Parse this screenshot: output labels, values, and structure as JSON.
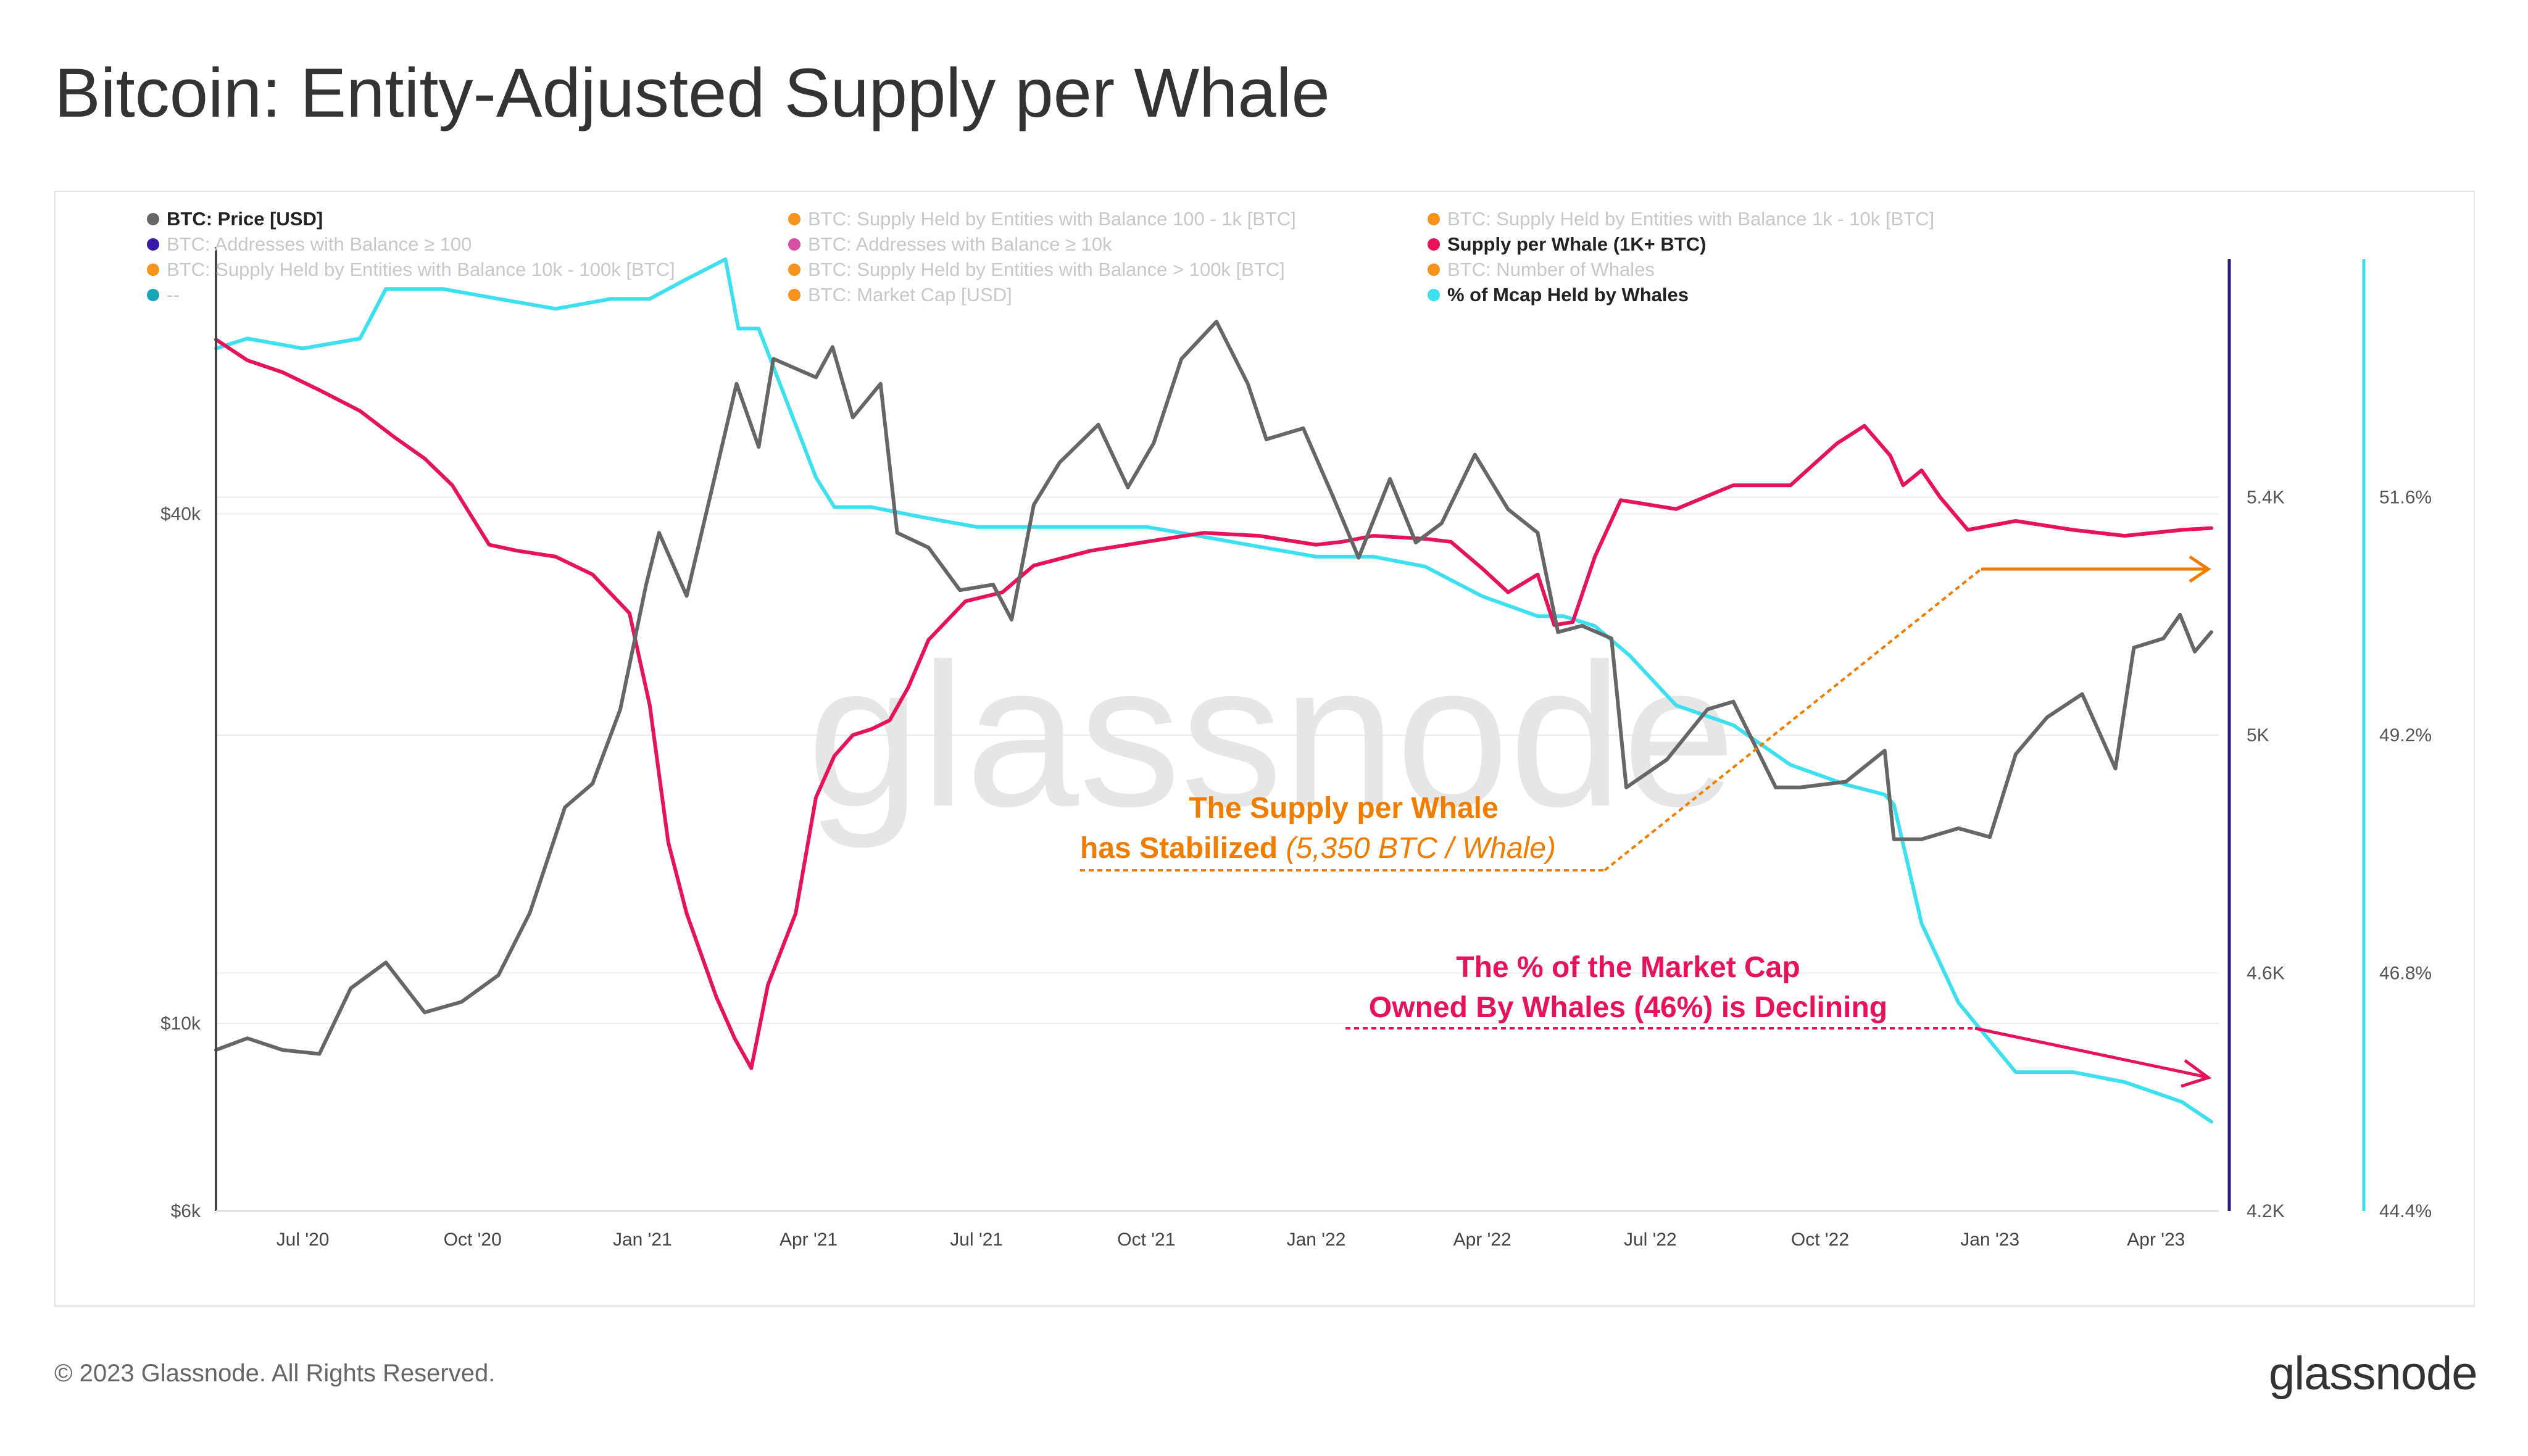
{
  "title": "Bitcoin: Entity-Adjusted Supply per Whale",
  "footer": {
    "copyright": "© 2023 Glassnode. All Rights Reserved.",
    "logo": "glassnode"
  },
  "watermark": "glassnode",
  "chart_data": {
    "type": "line",
    "title": "Bitcoin: Entity-Adjusted Supply per Whale",
    "legend": [
      {
        "label": "BTC: Price [USD]",
        "color": "#666666",
        "active": true
      },
      {
        "label": "BTC: Supply Held by Entities with Balance 100 - 1k [BTC]",
        "color": "#f7931a",
        "active": false
      },
      {
        "label": "BTC: Supply Held by Entities with Balance 1k - 10k [BTC]",
        "color": "#f7931a",
        "active": false
      },
      {
        "label": "BTC: Addresses with Balance ≥ 100",
        "color": "#3a1aa8",
        "active": false
      },
      {
        "label": "BTC: Addresses with Balance ≥ 10k",
        "color": "#d94fa3",
        "active": false
      },
      {
        "label": "Supply per Whale (1K+ BTC)",
        "color": "#e8125c",
        "active": true
      },
      {
        "label": "BTC: Supply Held by Entities with Balance 10k - 100k [BTC]",
        "color": "#f7931a",
        "active": false
      },
      {
        "label": "BTC: Supply Held by Entities with Balance > 100k [BTC]",
        "color": "#f7931a",
        "active": false
      },
      {
        "label": "BTC: Number of Whales",
        "color": "#f7931a",
        "active": false
      },
      {
        "label": "--",
        "color": "#1aa6b7",
        "active": false
      },
      {
        "label": "BTC: Market Cap [USD]",
        "color": "#f7931a",
        "active": false
      },
      {
        "label": "% of Mcap Held by Whales",
        "color": "#3de0ee",
        "active": true
      }
    ],
    "x_ticks": [
      "Jul '20",
      "Oct '20",
      "Jan '21",
      "Apr '21",
      "Jul '21",
      "Oct '21",
      "Jan '22",
      "Apr '22",
      "Jul '22",
      "Oct '22",
      "Jan '23",
      "Apr '23"
    ],
    "y_left": {
      "scale": "log",
      "ticks": [
        "$6k",
        "$10k",
        "$40k"
      ],
      "tick_values": [
        6000,
        10000,
        40000
      ],
      "range": [
        6000,
        80000
      ]
    },
    "y_right1": {
      "ticks": [
        "4.2K",
        "4.6K",
        "5K",
        "5.4K"
      ],
      "tick_values": [
        4200,
        4600,
        5000,
        5400
      ],
      "range": [
        4200,
        5800
      ],
      "color": "#2d1a80"
    },
    "y_right2": {
      "ticks": [
        "44.4%",
        "46.8%",
        "49.2%",
        "51.6%"
      ],
      "tick_values": [
        44.4,
        46.8,
        49.2,
        51.6
      ],
      "range": [
        44.4,
        54.0
      ],
      "color": "#3de0ee"
    },
    "series": [
      {
        "name": "BTC: Price [USD]",
        "axis": "y_left",
        "color": "#666666",
        "x": [
          "2020-05-15",
          "2020-06-01",
          "2020-06-20",
          "2020-07-10",
          "2020-07-27",
          "2020-08-15",
          "2020-09-05",
          "2020-09-25",
          "2020-10-15",
          "2020-11-01",
          "2020-11-20",
          "2020-12-05",
          "2020-12-20",
          "2021-01-03",
          "2021-01-10",
          "2021-01-25",
          "2021-02-10",
          "2021-02-21",
          "2021-03-05",
          "2021-03-13",
          "2021-04-05",
          "2021-04-14",
          "2021-04-25",
          "2021-05-10",
          "2021-05-19",
          "2021-06-05",
          "2021-06-22",
          "2021-07-10",
          "2021-07-20",
          "2021-08-01",
          "2021-08-15",
          "2021-09-05",
          "2021-09-21",
          "2021-10-05",
          "2021-10-20",
          "2021-11-08",
          "2021-11-25",
          "2021-12-05",
          "2021-12-25",
          "2022-01-10",
          "2022-01-24",
          "2022-02-10",
          "2022-02-24",
          "2022-03-10",
          "2022-03-28",
          "2022-04-15",
          "2022-05-01",
          "2022-05-12",
          "2022-05-25",
          "2022-06-10",
          "2022-06-18",
          "2022-07-10",
          "2022-08-01",
          "2022-08-15",
          "2022-09-07",
          "2022-09-20",
          "2022-10-15",
          "2022-11-05",
          "2022-11-10",
          "2022-11-25",
          "2022-12-15",
          "2023-01-01",
          "2023-01-15",
          "2023-02-01",
          "2023-02-20",
          "2023-03-10",
          "2023-03-20",
          "2023-04-05",
          "2023-04-14",
          "2023-04-22",
          "2023-05-01"
        ],
        "y": [
          9300,
          9600,
          9300,
          9200,
          11000,
          11800,
          10300,
          10600,
          11400,
          13500,
          18000,
          19200,
          23500,
          33000,
          38000,
          32000,
          45000,
          57000,
          48000,
          61000,
          58000,
          63000,
          52000,
          57000,
          38000,
          36500,
          32500,
          33000,
          30000,
          41000,
          46000,
          51000,
          43000,
          48500,
          61000,
          67500,
          57000,
          49000,
          50500,
          42000,
          35500,
          44000,
          37000,
          39000,
          47000,
          40500,
          38000,
          29000,
          29500,
          28500,
          19000,
          20500,
          23500,
          24000,
          19000,
          19000,
          19300,
          21000,
          16500,
          16500,
          17000,
          16600,
          20800,
          23000,
          24500,
          20000,
          27800,
          28500,
          30400,
          27500,
          29000
        ]
      },
      {
        "name": "Supply per Whale (1K+ BTC)",
        "axis": "y_right1",
        "color": "#e8125c",
        "x": [
          "2020-05-15",
          "2020-06-01",
          "2020-06-20",
          "2020-07-10",
          "2020-08-01",
          "2020-08-20",
          "2020-09-05",
          "2020-09-20",
          "2020-10-10",
          "2020-10-25",
          "2020-11-15",
          "2020-12-05",
          "2020-12-25",
          "2021-01-05",
          "2021-01-15",
          "2021-01-25",
          "2021-02-10",
          "2021-02-20",
          "2021-03-01",
          "2021-03-10",
          "2021-03-25",
          "2021-04-05",
          "2021-04-15",
          "2021-04-25",
          "2021-05-05",
          "2021-05-15",
          "2021-05-25",
          "2021-06-05",
          "2021-06-25",
          "2021-07-15",
          "2021-08-01",
          "2021-09-01",
          "2021-10-01",
          "2021-11-01",
          "2021-12-01",
          "2022-01-01",
          "2022-01-15",
          "2022-02-01",
          "2022-03-01",
          "2022-03-15",
          "2022-04-01",
          "2022-04-15",
          "2022-05-01",
          "2022-05-10",
          "2022-05-20",
          "2022-06-01",
          "2022-06-15",
          "2022-07-15",
          "2022-08-15",
          "2022-09-15",
          "2022-10-10",
          "2022-10-25",
          "2022-11-08",
          "2022-11-15",
          "2022-11-25",
          "2022-12-05",
          "2022-12-20",
          "2023-01-15",
          "2023-02-15",
          "2023-03-15",
          "2023-04-15",
          "2023-05-01"
        ],
        "y": [
          5665,
          5630,
          5610,
          5580,
          5545,
          5500,
          5465,
          5420,
          5320,
          5310,
          5300,
          5270,
          5205,
          5050,
          4820,
          4700,
          4560,
          4490,
          4440,
          4580,
          4700,
          4895,
          4965,
          5000,
          5010,
          5025,
          5080,
          5160,
          5225,
          5240,
          5285,
          5310,
          5325,
          5340,
          5335,
          5320,
          5325,
          5335,
          5330,
          5325,
          5280,
          5240,
          5270,
          5185,
          5190,
          5300,
          5395,
          5380,
          5420,
          5420,
          5490,
          5520,
          5470,
          5420,
          5445,
          5400,
          5345,
          5360,
          5345,
          5335,
          5345,
          5348
        ]
      },
      {
        "name": "% of Mcap Held by Whales",
        "axis": "y_right2",
        "color": "#3de0ee",
        "x": [
          "2020-05-15",
          "2020-06-01",
          "2020-07-01",
          "2020-08-01",
          "2020-08-15",
          "2020-09-15",
          "2020-10-15",
          "2020-11-15",
          "2020-12-15",
          "2021-01-05",
          "2021-01-25",
          "2021-02-15",
          "2021-02-22",
          "2021-03-05",
          "2021-04-05",
          "2021-04-15",
          "2021-05-05",
          "2021-06-01",
          "2021-07-01",
          "2021-08-01",
          "2021-09-01",
          "2021-10-01",
          "2021-11-01",
          "2021-12-01",
          "2022-01-01",
          "2022-02-01",
          "2022-03-01",
          "2022-04-01",
          "2022-05-01",
          "2022-05-15",
          "2022-06-01",
          "2022-06-20",
          "2022-07-15",
          "2022-08-15",
          "2022-09-15",
          "2022-10-15",
          "2022-11-05",
          "2022-11-10",
          "2022-11-25",
          "2022-12-15",
          "2023-01-15",
          "2023-02-15",
          "2023-03-15",
          "2023-04-15",
          "2023-05-01"
        ],
        "y": [
          53.1,
          53.2,
          53.1,
          53.2,
          53.7,
          53.7,
          53.6,
          53.5,
          53.6,
          53.6,
          53.8,
          54.0,
          53.3,
          53.3,
          51.8,
          51.5,
          51.5,
          51.4,
          51.3,
          51.3,
          51.3,
          51.3,
          51.2,
          51.1,
          51.0,
          51.0,
          50.9,
          50.6,
          50.4,
          50.4,
          50.3,
          50.0,
          49.5,
          49.3,
          48.9,
          48.7,
          48.6,
          48.5,
          47.3,
          46.5,
          45.8,
          45.8,
          45.7,
          45.5,
          45.3
        ]
      }
    ],
    "annotations": [
      {
        "line1": "The Supply per Whale",
        "line2_bold": "has Stabilized",
        "line2_rest": " (5,350 BTC / Whale)",
        "color": "#f07d00"
      },
      {
        "line1": "The % of the Market Cap",
        "line2_bold": "Owned By Whales (46%) is Declining",
        "color": "#e8125c"
      }
    ]
  }
}
